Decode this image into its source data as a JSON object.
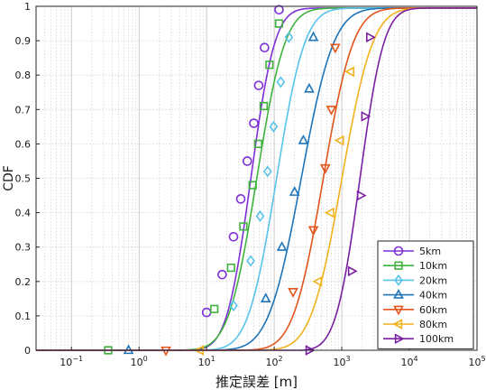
{
  "chart_data": {
    "type": "line",
    "title": "",
    "xlabel": "推定誤差 [m]",
    "ylabel": "CDF",
    "xscale": "log",
    "xlim": [
      0.03,
      100000
    ],
    "ylim": [
      0,
      1
    ],
    "xticks": [
      {
        "value": 0.1,
        "base": "10",
        "exp": "−1"
      },
      {
        "value": 1,
        "base": "10",
        "exp": "0"
      },
      {
        "value": 10,
        "base": "10",
        "exp": "1"
      },
      {
        "value": 100,
        "base": "10",
        "exp": "2"
      },
      {
        "value": 1000,
        "base": "10",
        "exp": "3"
      },
      {
        "value": 10000,
        "base": "10",
        "exp": "4"
      },
      {
        "value": 100000,
        "base": "10",
        "exp": "5"
      }
    ],
    "yticks": [
      {
        "value": 0,
        "label": "0"
      },
      {
        "value": 0.1,
        "label": "0.1"
      },
      {
        "value": 0.2,
        "label": "0.2"
      },
      {
        "value": 0.3,
        "label": "0.3"
      },
      {
        "value": 0.4,
        "label": "0.4"
      },
      {
        "value": 0.5,
        "label": "0.5"
      },
      {
        "value": 0.6,
        "label": "0.6"
      },
      {
        "value": 0.7,
        "label": "0.7"
      },
      {
        "value": 0.8,
        "label": "0.8"
      },
      {
        "value": 0.9,
        "label": "0.9"
      },
      {
        "value": 1,
        "label": "1"
      }
    ],
    "grid": true,
    "legend_position": "bottom-right",
    "series": [
      {
        "name": "5km",
        "color": "#7e2fd8",
        "marker": "circle",
        "median": 45,
        "spread": 0.28,
        "start": 0.5,
        "markers": [
          [
            10,
            0.11
          ],
          [
            17,
            0.22
          ],
          [
            25,
            0.33
          ],
          [
            32,
            0.44
          ],
          [
            40,
            0.55
          ],
          [
            50,
            0.66
          ],
          [
            59,
            0.77
          ],
          [
            72,
            0.88
          ],
          [
            118,
            0.99
          ]
        ]
      },
      {
        "name": "10km",
        "color": "#3db33d",
        "marker": "square",
        "median": 55,
        "spread": 0.33,
        "start": 0.2,
        "markers": [
          [
            0.35,
            0
          ],
          [
            13,
            0.12
          ],
          [
            23,
            0.24
          ],
          [
            35,
            0.36
          ],
          [
            48,
            0.48
          ],
          [
            58,
            0.6
          ],
          [
            70,
            0.71
          ],
          [
            85,
            0.83
          ],
          [
            118,
            0.95
          ]
        ]
      },
      {
        "name": "20km",
        "color": "#57c3ea",
        "marker": "diamond",
        "median": 108,
        "spread": 0.33,
        "start": 0.2,
        "markers": [
          [
            25,
            0.13
          ],
          [
            45,
            0.26
          ],
          [
            62,
            0.39
          ],
          [
            80,
            0.52
          ],
          [
            98,
            0.65
          ],
          [
            125,
            0.78
          ],
          [
            165,
            0.91
          ]
        ]
      },
      {
        "name": "40km",
        "color": "#1f74b8",
        "marker": "triangle-up",
        "median": 250,
        "spread": 0.38,
        "start": 0.5,
        "markers": [
          [
            0.7,
            0
          ],
          [
            75,
            0.15
          ],
          [
            130,
            0.3
          ],
          [
            200,
            0.46
          ],
          [
            270,
            0.61
          ],
          [
            330,
            0.76
          ],
          [
            380,
            0.91
          ]
        ]
      },
      {
        "name": "60km",
        "color": "#e3541b",
        "marker": "triangle-down",
        "median": 530,
        "spread": 0.35,
        "start": 1.5,
        "markers": [
          [
            2.5,
            0
          ],
          [
            190,
            0.17
          ],
          [
            380,
            0.35
          ],
          [
            570,
            0.53
          ],
          [
            700,
            0.7
          ],
          [
            800,
            0.88
          ]
        ]
      },
      {
        "name": "80km",
        "color": "#f2b21c",
        "marker": "triangle-left",
        "median": 1000,
        "spread": 0.36,
        "start": 4,
        "markers": [
          [
            8,
            0
          ],
          [
            450,
            0.2
          ],
          [
            680,
            0.4
          ],
          [
            950,
            0.61
          ],
          [
            1350,
            0.81
          ]
        ]
      },
      {
        "name": "100km",
        "color": "#7a1fa2",
        "marker": "triangle-right",
        "median": 1850,
        "spread": 0.28,
        "start": 250,
        "markers": [
          [
            330,
            0
          ],
          [
            1400,
            0.23
          ],
          [
            1900,
            0.45
          ],
          [
            2200,
            0.68
          ],
          [
            2600,
            0.91
          ]
        ]
      }
    ]
  }
}
